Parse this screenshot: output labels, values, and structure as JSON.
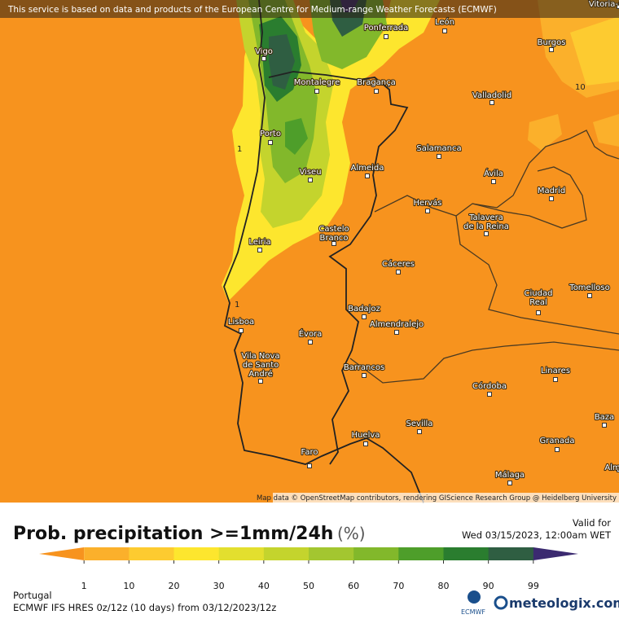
{
  "header": {
    "attribution": "This service is based on data and products of the European Centre for Medium-range Weather Forecasts (ECMWF)",
    "map_credit": "Map data © OpenStreetMap contributors, rendering GIScience Research Group @ Heidelberg University"
  },
  "cities": [
    [
      "Vitoria-G"
    ],
    [
      "Ponferrada"
    ],
    [
      "León"
    ],
    [
      "Vigo"
    ],
    [
      "Burgos"
    ],
    [
      "Montalegre"
    ],
    [
      "Bragança"
    ],
    [
      "Valladolid"
    ],
    [
      "Porto"
    ],
    [
      "Salamanca"
    ],
    [
      "Viseu"
    ],
    [
      "Almeida"
    ],
    [
      "Ávila"
    ],
    [
      "Madrid"
    ],
    [
      "Hervás"
    ],
    [
      "Talavera",
      "de la Reina"
    ],
    [
      "Castelo",
      "Branco"
    ],
    [
      "Leiria"
    ],
    [
      "Cáceres"
    ],
    [
      "Ciudad",
      "Real"
    ],
    [
      "Tomelloso"
    ],
    [
      "Lisboa"
    ],
    [
      "Badajoz"
    ],
    [
      "Almendralejo"
    ],
    [
      "Évora"
    ],
    [
      "Vila Nova",
      "de Santo",
      "André"
    ],
    [
      "Barrancos"
    ],
    [
      "Linares"
    ],
    [
      "Córdoba"
    ],
    [
      "Baza"
    ],
    [
      "Sevilla"
    ],
    [
      "Huelva"
    ],
    [
      "Granada"
    ],
    [
      "Faro"
    ],
    [
      "Málaga"
    ],
    [
      "Alm"
    ]
  ],
  "contour_labels": [
    "1",
    "1",
    "10"
  ],
  "title": "Prob. precipitation >=1mm/24h",
  "unit": "(%)",
  "valid": {
    "label": "Valid for",
    "time": "Wed 03/15/2023, 12:00am WET"
  },
  "legend": {
    "labels": [
      "1",
      "10",
      "20",
      "30",
      "40",
      "50",
      "60",
      "70",
      "80",
      "90",
      "99"
    ],
    "colors": [
      "#f7931e",
      "#fbb02b",
      "#fdcb30",
      "#fde62e",
      "#e3df2e",
      "#c4d42d",
      "#a3c630",
      "#82b82b",
      "#4e9e2a",
      "#2a7d2f",
      "#2f5e42",
      "#3b2a70"
    ]
  },
  "footer": {
    "region": "Portugal",
    "model": "ECMWF IFS HRES 0z/12z (10 days) from  03/12/2023/12z",
    "ecmwf": "ECMWF",
    "brand": "meteologix.com"
  }
}
